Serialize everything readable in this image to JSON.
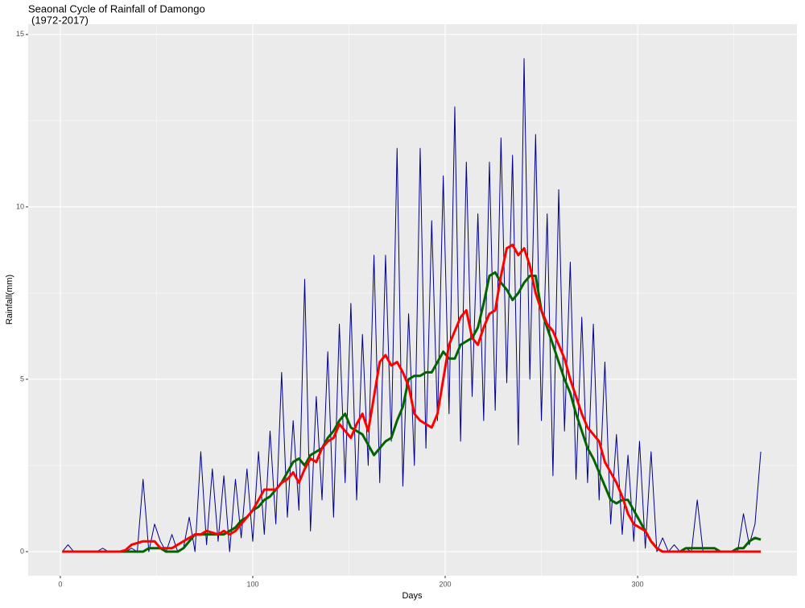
{
  "chart_data": {
    "type": "line",
    "title": "Seaonal Cycle of Rainfall of Damongo",
    "subtitle": "(1972-2017)",
    "x_label": "Days",
    "y_label": "Rainfall(mm)",
    "xlim": [
      -16.7,
      382.8
    ],
    "ylim": [
      -0.7,
      15.3
    ],
    "xticks": [
      0,
      100,
      200,
      300
    ],
    "yticks": [
      0,
      5,
      10,
      15
    ],
    "grid": true,
    "x": [
      1,
      4,
      7,
      10,
      13,
      16,
      19,
      22,
      25,
      28,
      31,
      34,
      37,
      40,
      43,
      46,
      49,
      52,
      55,
      58,
      61,
      64,
      67,
      70,
      73,
      76,
      79,
      82,
      85,
      88,
      91,
      94,
      97,
      100,
      103,
      106,
      109,
      112,
      115,
      118,
      121,
      124,
      127,
      130,
      133,
      136,
      139,
      142,
      145,
      148,
      151,
      154,
      157,
      160,
      163,
      166,
      169,
      172,
      175,
      178,
      181,
      184,
      187,
      190,
      193,
      196,
      199,
      202,
      205,
      208,
      211,
      214,
      217,
      220,
      223,
      226,
      229,
      232,
      235,
      238,
      241,
      244,
      247,
      250,
      253,
      256,
      259,
      262,
      265,
      268,
      271,
      274,
      277,
      280,
      283,
      286,
      289,
      292,
      295,
      298,
      301,
      304,
      307,
      310,
      313,
      316,
      319,
      322,
      325,
      328,
      331,
      334,
      337,
      340,
      343,
      346,
      349,
      352,
      355,
      358,
      361,
      364
    ],
    "series": [
      {
        "color": "#00008b",
        "width": 1,
        "values": [
          0,
          0.2,
          0,
          0,
          0,
          0,
          0,
          0.1,
          0,
          0,
          0,
          0,
          0.1,
          0,
          2.1,
          0,
          0.8,
          0.3,
          0,
          0.5,
          0,
          0.1,
          1.0,
          0,
          2.9,
          0.2,
          2.4,
          0.3,
          2.2,
          0,
          2.1,
          0.4,
          2.4,
          0.3,
          2.9,
          0.5,
          3.5,
          0.8,
          5.2,
          1.0,
          3.8,
          1.2,
          7.9,
          0.6,
          4.5,
          1.5,
          5.8,
          1.0,
          6.6,
          2.0,
          7.2,
          1.5,
          6.3,
          2.5,
          8.6,
          2.0,
          8.6,
          3.2,
          11.7,
          1.9,
          6.9,
          2.5,
          11.7,
          3.0,
          9.6,
          3.8,
          10.9,
          4.0,
          12.9,
          3.2,
          11.3,
          4.5,
          9.8,
          3.8,
          11.3,
          4.1,
          12.0,
          4.9,
          11.5,
          3.1,
          14.3,
          5.0,
          12.1,
          3.8,
          9.8,
          2.2,
          10.5,
          3.5,
          8.4,
          2.1,
          6.8,
          2.0,
          6.6,
          1.5,
          5.5,
          0.8,
          3.4,
          0.5,
          2.8,
          0.3,
          3.2,
          0.1,
          2.9,
          0,
          0.4,
          0,
          0.2,
          0,
          0.1,
          0,
          1.5,
          0,
          0,
          0,
          0,
          0,
          0,
          0,
          1.1,
          0.2,
          0.8,
          2.9
        ]
      },
      {
        "color": "#006400",
        "width": 3,
        "values": [
          0,
          0,
          0,
          0,
          0,
          0,
          0,
          0,
          0,
          0,
          0,
          0,
          0,
          0,
          0,
          0.1,
          0.1,
          0.1,
          0,
          0,
          0,
          0.1,
          0.3,
          0.5,
          0.5,
          0.5,
          0.5,
          0.5,
          0.5,
          0.6,
          0.7,
          0.9,
          1.0,
          1.2,
          1.3,
          1.5,
          1.6,
          1.8,
          2.0,
          2.3,
          2.6,
          2.7,
          2.5,
          2.8,
          2.9,
          3.0,
          3.3,
          3.5,
          3.8,
          4.0,
          3.6,
          3.5,
          3.4,
          3.1,
          2.8,
          3.0,
          3.2,
          3.3,
          3.8,
          4.2,
          5.0,
          5.1,
          5.1,
          5.2,
          5.2,
          5.5,
          5.8,
          5.6,
          5.6,
          6.0,
          6.1,
          6.2,
          6.5,
          7.2,
          8.0,
          8.1,
          7.8,
          7.6,
          7.3,
          7.5,
          7.8,
          8.0,
          8.0,
          7.0,
          6.5,
          6.0,
          5.5,
          5.0,
          4.6,
          4.0,
          3.5,
          3.0,
          2.7,
          2.3,
          1.9,
          1.5,
          1.4,
          1.5,
          1.5,
          1.2,
          0.9,
          0.6,
          0.3,
          0.1,
          0,
          0,
          0,
          0,
          0.1,
          0.1,
          0.1,
          0.1,
          0.1,
          0.1,
          0,
          0,
          0,
          0.1,
          0.1,
          0.3,
          0.4,
          0.35
        ]
      },
      {
        "color": "#ff0000",
        "width": 3,
        "values": [
          0,
          0,
          0,
          0,
          0,
          0,
          0,
          0,
          0,
          0,
          0,
          0.05,
          0.2,
          0.25,
          0.3,
          0.3,
          0.3,
          0.1,
          0.1,
          0.1,
          0.2,
          0.3,
          0.4,
          0.5,
          0.5,
          0.6,
          0.55,
          0.5,
          0.6,
          0.5,
          0.6,
          0.8,
          1.0,
          1.2,
          1.5,
          1.8,
          1.8,
          1.8,
          2.0,
          2.1,
          2.3,
          2.0,
          2.4,
          2.7,
          2.6,
          3.0,
          3.2,
          3.3,
          3.7,
          3.5,
          3.3,
          3.7,
          4.0,
          3.5,
          4.5,
          5.5,
          5.7,
          5.4,
          5.5,
          5.2,
          4.8,
          4.0,
          3.8,
          3.7,
          3.6,
          4.0,
          5.0,
          6.0,
          6.4,
          6.8,
          7.0,
          6.2,
          6.0,
          6.5,
          6.9,
          7.0,
          8.0,
          8.8,
          8.9,
          8.6,
          8.8,
          8.3,
          7.5,
          7.0,
          6.6,
          6.4,
          6.0,
          5.6,
          5.0,
          4.5,
          4.0,
          3.6,
          3.4,
          3.2,
          2.6,
          2.3,
          2.0,
          1.6,
          1.1,
          0.8,
          0.7,
          0.6,
          0.3,
          0.1,
          0,
          0,
          0,
          0,
          0,
          0,
          0,
          0,
          0,
          0,
          0,
          0,
          0,
          0,
          0,
          0,
          0,
          0
        ]
      }
    ]
  }
}
